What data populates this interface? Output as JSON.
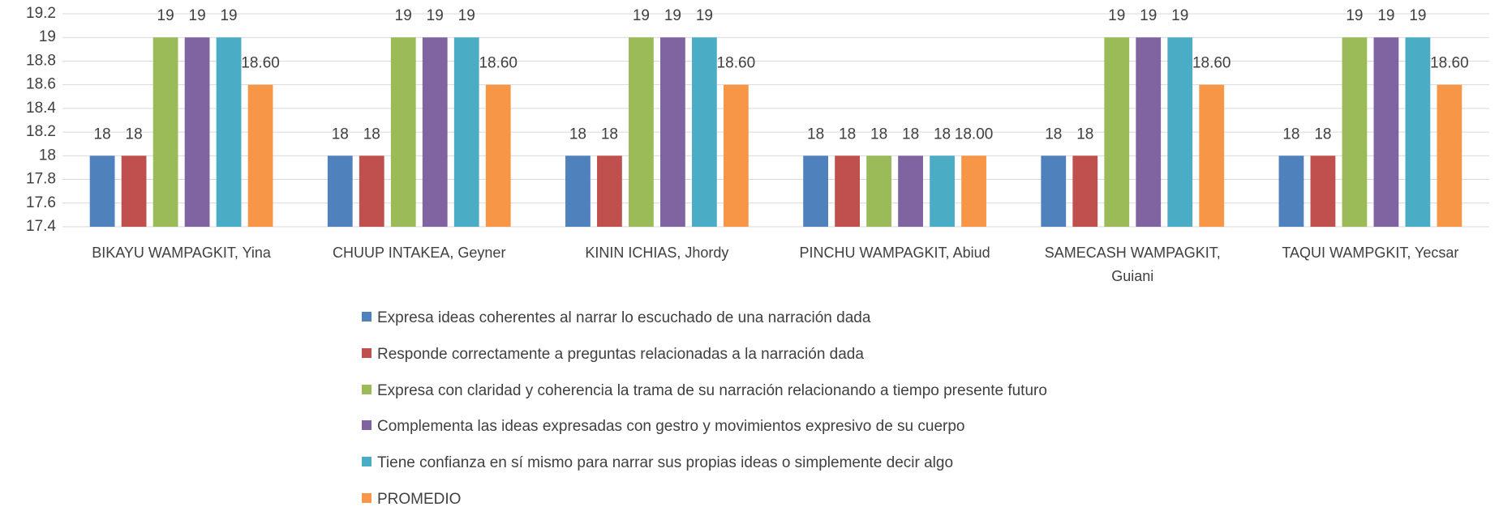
{
  "chart_data": {
    "type": "bar",
    "categories": [
      "BIKAYU WAMPAGKIT, Yina",
      "CHUUP INTAKEA, Geyner",
      "KININ ICHIAS, Jhordy",
      "PINCHU WAMPAGKIT, Abiud",
      "SAMECASH WAMPAGKIT, Guiani",
      "TAQUI WAMPGKIT, Yecsar"
    ],
    "series": [
      {
        "name": "Expresa ideas coherentes al narrar lo escuchado de una narración dada",
        "color": "#4f81bd",
        "values": [
          18,
          18,
          18,
          18,
          18,
          18
        ]
      },
      {
        "name": "Responde correctamente a preguntas relacionadas a la narración dada",
        "color": "#c0504d",
        "values": [
          18,
          18,
          18,
          18,
          18,
          18
        ]
      },
      {
        "name": "Expresa con claridad y coherencia la trama de su narración relacionando a tiempo presente futuro",
        "color": "#9bbb59",
        "values": [
          19,
          19,
          19,
          18,
          19,
          19
        ]
      },
      {
        "name": "Complementa las ideas expresadas con gestro y movimientos expresivo de su cuerpo",
        "color": "#8064a2",
        "values": [
          19,
          19,
          19,
          18,
          19,
          19
        ]
      },
      {
        "name": "Tiene confianza en sí mismo para narrar sus propias ideas o simplemente decir algo",
        "color": "#4bacc6",
        "values": [
          19,
          19,
          19,
          18,
          19,
          19
        ]
      },
      {
        "name": "PROMEDIO",
        "color": "#f79646",
        "values": [
          18.6,
          18.6,
          18.6,
          18.0,
          18.6,
          18.6
        ],
        "value_labels": [
          "18.60",
          "18.60",
          "18.60",
          "18.00",
          "18.60",
          "18.60"
        ]
      }
    ],
    "ylim": [
      17.4,
      19.2
    ],
    "yticks": [
      17.4,
      17.6,
      17.8,
      18,
      18.2,
      18.4,
      18.6,
      18.8,
      19,
      19.2
    ],
    "grid": true,
    "legend": "bottom"
  }
}
